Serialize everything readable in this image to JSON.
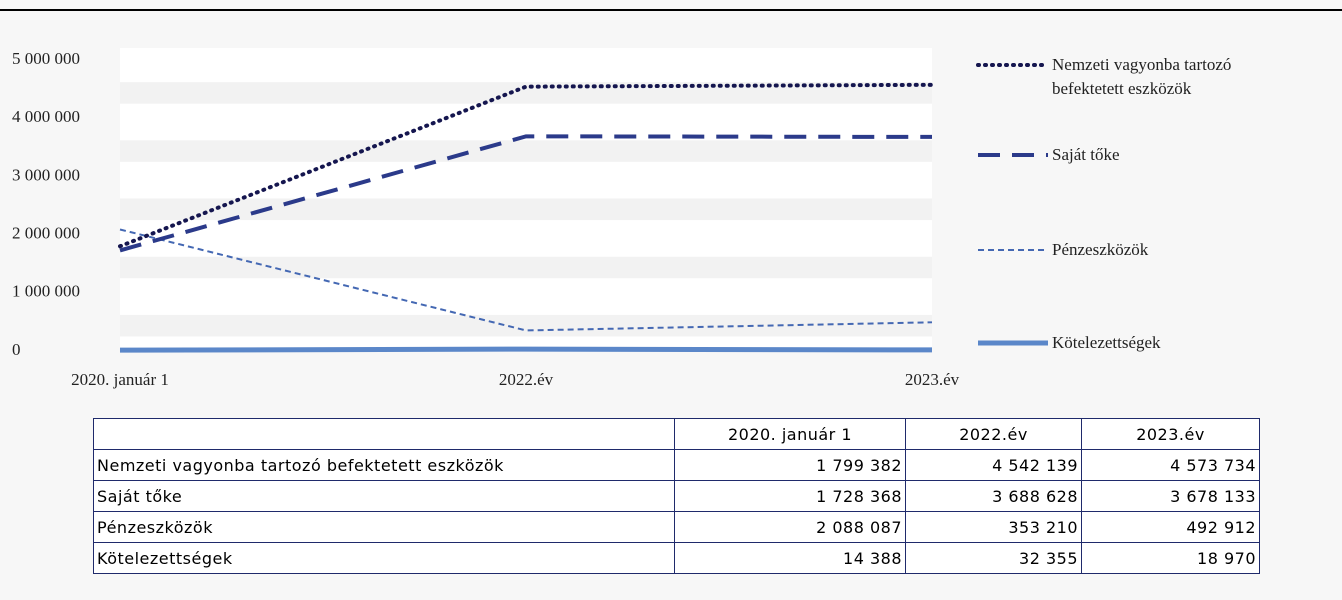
{
  "chart_data": {
    "type": "line",
    "categories": [
      "2020. január 1",
      "2022.év",
      "2023.év"
    ],
    "series": [
      {
        "name": "Nemzeti vagyonba tartozó befektetett eszközök",
        "color": "#15164f",
        "style": "dotted",
        "values": [
          1799382,
          4542139,
          4573734
        ],
        "value_labels": [
          "1 799 382",
          "4 542 139",
          "4 573 734"
        ]
      },
      {
        "name": "Saját tőke",
        "color": "#2b3a8a",
        "style": "dashed",
        "values": [
          1728368,
          3688628,
          3678133
        ],
        "value_labels": [
          "1 728 368",
          "3 688 628",
          "3 678 133"
        ]
      },
      {
        "name": "Pénzeszközök",
        "color": "#4468b3",
        "style": "short-dashed",
        "values": [
          2088087,
          353210,
          492912
        ],
        "value_labels": [
          "2 088 087",
          "353 210",
          "492 912"
        ]
      },
      {
        "name": "Kötelezettségek",
        "color": "#5b87c9",
        "style": "solid",
        "values": [
          14388,
          32355,
          18970
        ],
        "value_labels": [
          "14 388",
          "32 355",
          "18 970"
        ]
      }
    ],
    "ylim": [
      0,
      5000000
    ],
    "yticks": [
      0,
      {
        "value": 1000000,
        "label": "1 000 000"
      },
      {
        "value": 2000000,
        "label": "2 000 000"
      },
      {
        "value": 3000000,
        "label": "3 000 000"
      },
      {
        "value": 4000000,
        "label": "4 000 000"
      },
      {
        "value": 5000000,
        "label": "5 000 000"
      }
    ]
  }
}
